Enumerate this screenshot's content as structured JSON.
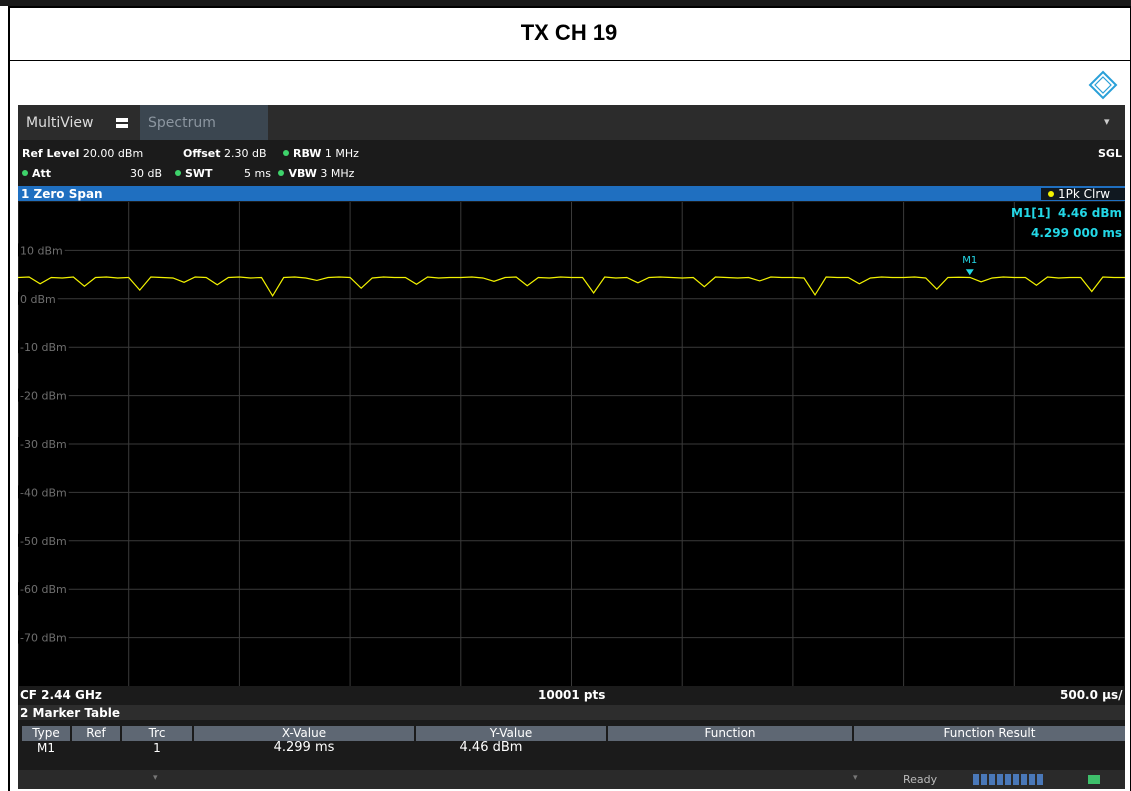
{
  "header": {
    "title": "TX CH 19"
  },
  "screen": {
    "tabs": [
      "MultiView",
      "Spectrum"
    ],
    "settings": {
      "ref_level_label": "Ref Level",
      "ref_level": "20.00 dBm",
      "offset_label": "Offset",
      "offset": "2.30 dB",
      "rbw_label": "RBW",
      "rbw": "1 MHz",
      "att_label": "Att",
      "att": "30 dB",
      "swt_label": "SWT",
      "swt": "5 ms",
      "vbw_label": "VBW",
      "vbw": "3 MHz",
      "mode": "SGL"
    },
    "window": {
      "title": "1 Zero Span",
      "trace_label": "1Pk Clrw"
    },
    "plot": {
      "type": "line",
      "color": "#f2f200",
      "xlim": [
        0,
        5
      ],
      "xticks": [
        0,
        0.5,
        1,
        1.5,
        2,
        2.5,
        3,
        3.5,
        4,
        4.5,
        5
      ],
      "ylim": [
        -80,
        20
      ],
      "yticks": [
        {
          "value": 10,
          "label": "10 dBm"
        },
        {
          "value": 0,
          "label": "0 dBm"
        },
        {
          "value": -10,
          "label": "-10 dBm"
        },
        {
          "value": -20,
          "label": "-20 dBm"
        },
        {
          "value": -30,
          "label": "-30 dBm"
        },
        {
          "value": -40,
          "label": "-40 dBm"
        },
        {
          "value": -50,
          "label": "-50 dBm"
        },
        {
          "value": -60,
          "label": "-60 dBm"
        },
        {
          "value": -70,
          "label": "-70 dBm"
        }
      ],
      "x": [
        0,
        0.05,
        0.1,
        0.15,
        0.2,
        0.25,
        0.3,
        0.35,
        0.4,
        0.45,
        0.5,
        0.55,
        0.6,
        0.65,
        0.7,
        0.75,
        0.8,
        0.85,
        0.9,
        0.95,
        1,
        1.05,
        1.1,
        1.15,
        1.2,
        1.25,
        1.3,
        1.35,
        1.4,
        1.45,
        1.5,
        1.55,
        1.6,
        1.65,
        1.7,
        1.75,
        1.8,
        1.85,
        1.9,
        1.95,
        2,
        2.05,
        2.1,
        2.15,
        2.2,
        2.25,
        2.3,
        2.35,
        2.4,
        2.45,
        2.5,
        2.55,
        2.6,
        2.65,
        2.7,
        2.75,
        2.8,
        2.85,
        2.9,
        2.95,
        3,
        3.05,
        3.1,
        3.15,
        3.2,
        3.25,
        3.3,
        3.35,
        3.4,
        3.45,
        3.5,
        3.55,
        3.6,
        3.65,
        3.7,
        3.75,
        3.8,
        3.85,
        3.9,
        3.95,
        4,
        4.05,
        4.1,
        4.15,
        4.2,
        4.25,
        4.3,
        4.35,
        4.4,
        4.45,
        4.5,
        4.55,
        4.6,
        4.65,
        4.7,
        4.75,
        4.8,
        4.85,
        4.9,
        4.95,
        5
      ],
      "values": [
        4.4,
        4.5,
        3.1,
        4.4,
        4.3,
        4.5,
        2.6,
        4.4,
        4.5,
        4.3,
        4.4,
        1.8,
        4.5,
        4.4,
        4.3,
        3.4,
        4.5,
        4.4,
        2.9,
        4.4,
        4.5,
        4.3,
        4.4,
        0.6,
        4.4,
        4.5,
        4.3,
        3.8,
        4.4,
        4.5,
        4.4,
        2.2,
        4.3,
        4.5,
        4.4,
        4.4,
        3.0,
        4.5,
        4.3,
        4.4,
        4.4,
        4.5,
        4.3,
        3.6,
        4.4,
        4.5,
        2.7,
        4.4,
        4.3,
        4.5,
        4.4,
        4.4,
        1.2,
        4.5,
        4.3,
        4.4,
        3.3,
        4.4,
        4.5,
        4.4,
        4.3,
        4.4,
        2.5,
        4.5,
        4.4,
        4.3,
        4.4,
        3.7,
        4.5,
        4.4,
        4.4,
        4.3,
        0.8,
        4.5,
        4.4,
        4.4,
        3.1,
        4.3,
        4.5,
        4.4,
        4.4,
        4.5,
        4.3,
        2.0,
        4.4,
        4.46,
        4.4,
        3.5,
        4.3,
        4.5,
        4.4,
        4.4,
        2.8,
        4.5,
        4.3,
        4.4,
        4.4,
        1.5,
        4.5,
        4.4,
        4.4
      ],
      "marker": {
        "label": "M1",
        "x": 4.299,
        "y": 4.46,
        "readout_name": "M1[1]",
        "readout_y": "4.46 dBm",
        "readout_x": "4.299 000 ms"
      }
    },
    "footer": {
      "center_freq": "CF 2.44 GHz",
      "points": "10001 pts",
      "division": "500.0 µs/"
    },
    "marker_table": {
      "title": "2 Marker Table",
      "columns": [
        "Type",
        "Ref",
        "Trc",
        "X-Value",
        "Y-Value",
        "Function",
        "Function Result"
      ],
      "rows": [
        {
          "type": "M1",
          "trc": "1",
          "x_value": "4.299 ms",
          "y_value": "4.46 dBm"
        }
      ]
    },
    "status": "Ready"
  }
}
